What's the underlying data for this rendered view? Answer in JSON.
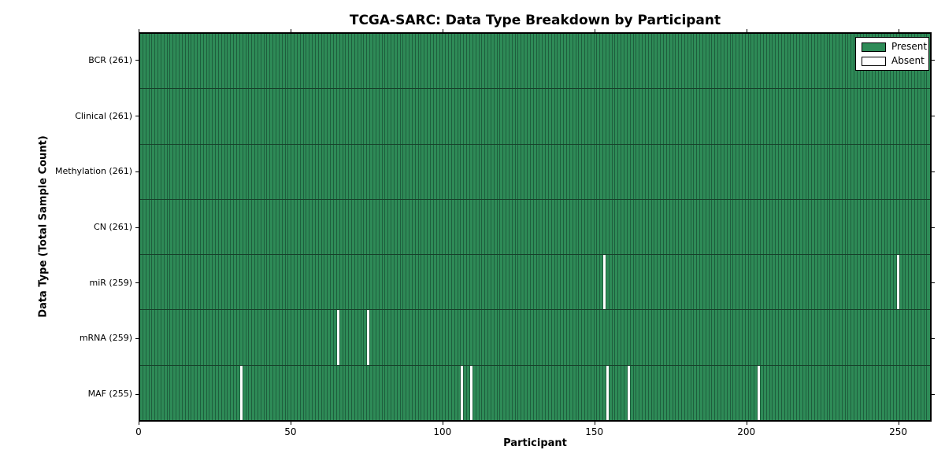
{
  "figure": {
    "title": "TCGA-SARC: Data Type Breakdown by Participant",
    "xlabel": "Participant",
    "ylabel": "Data Type (Total Sample Count)"
  },
  "legend": {
    "items": [
      {
        "label": "Present",
        "color": "#2e8b57"
      },
      {
        "label": "Absent",
        "color": "#ffffff"
      }
    ]
  },
  "chart_data": {
    "type": "heatmap",
    "title": "TCGA-SARC: Data Type Breakdown by Participant",
    "xlabel": "Participant",
    "ylabel": "Data Type (Total Sample Count)",
    "n_participants": 261,
    "xlim": [
      0,
      261
    ],
    "x_ticks": [
      0,
      50,
      100,
      150,
      200,
      250
    ],
    "grid": false,
    "legend_position": "upper right",
    "value_legend": {
      "present": "Present",
      "absent": "Absent"
    },
    "colors": {
      "present": "#2e8b57",
      "absent": "#ffffff",
      "cell_edge": "#1e5e3d",
      "row_separator": "#16402a",
      "spine": "#000000"
    },
    "rows": [
      {
        "label": "BCR",
        "total": 261,
        "display": "BCR (261)",
        "absent_participants": []
      },
      {
        "label": "Clinical",
        "total": 261,
        "display": "Clinical (261)",
        "absent_participants": []
      },
      {
        "label": "Methylation",
        "total": 261,
        "display": "Methylation (261)",
        "absent_participants": []
      },
      {
        "label": "CN",
        "total": 261,
        "display": "CN (261)",
        "absent_participants": []
      },
      {
        "label": "miR",
        "total": 259,
        "display": "miR (259)",
        "absent_participants": [
          153,
          250
        ]
      },
      {
        "label": "mRNA",
        "total": 259,
        "display": "mRNA (259)",
        "absent_participants": [
          65,
          75
        ]
      },
      {
        "label": "MAF",
        "total": 255,
        "display": "MAF (255)",
        "absent_participants": [
          33,
          106,
          109,
          154,
          161,
          204
        ]
      }
    ]
  }
}
